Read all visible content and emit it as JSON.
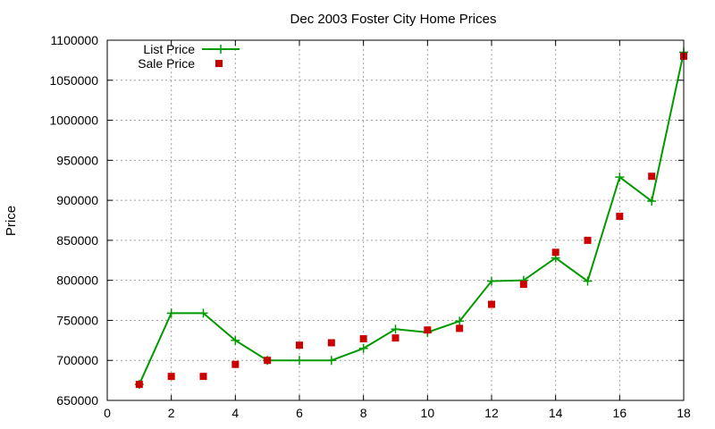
{
  "chart_data": {
    "type": "line",
    "title": "Dec 2003 Foster City Home Prices",
    "xlabel": "",
    "ylabel": "Price",
    "xlim": [
      0,
      18
    ],
    "ylim": [
      650000,
      1100000
    ],
    "xticks": [
      0,
      2,
      4,
      6,
      8,
      10,
      12,
      14,
      16,
      18
    ],
    "yticks": [
      650000,
      700000,
      750000,
      800000,
      850000,
      900000,
      950000,
      1000000,
      1050000,
      1100000
    ],
    "grid": true,
    "legend": "top-left",
    "series": [
      {
        "name": "List Price",
        "type": "line",
        "marker": "plus",
        "color": "#009900",
        "x": [
          1,
          2,
          3,
          4,
          5,
          6,
          7,
          8,
          9,
          10,
          11,
          12,
          13,
          14,
          15,
          16,
          17,
          18
        ],
        "y": [
          670000,
          759000,
          759000,
          725000,
          700000,
          700000,
          700000,
          715000,
          739000,
          735000,
          749000,
          799000,
          800000,
          828000,
          799000,
          929000,
          899000,
          1085000
        ]
      },
      {
        "name": "Sale Price",
        "type": "scatter",
        "marker": "square",
        "color": "#cc0000",
        "x": [
          1,
          2,
          3,
          4,
          5,
          6,
          7,
          8,
          9,
          10,
          11,
          12,
          13,
          14,
          15,
          16,
          17,
          18
        ],
        "y": [
          670000,
          680000,
          680000,
          695000,
          700000,
          719000,
          722000,
          727000,
          728000,
          738000,
          740000,
          770000,
          795000,
          835000,
          850000,
          880000,
          930000,
          1080000
        ]
      }
    ]
  }
}
